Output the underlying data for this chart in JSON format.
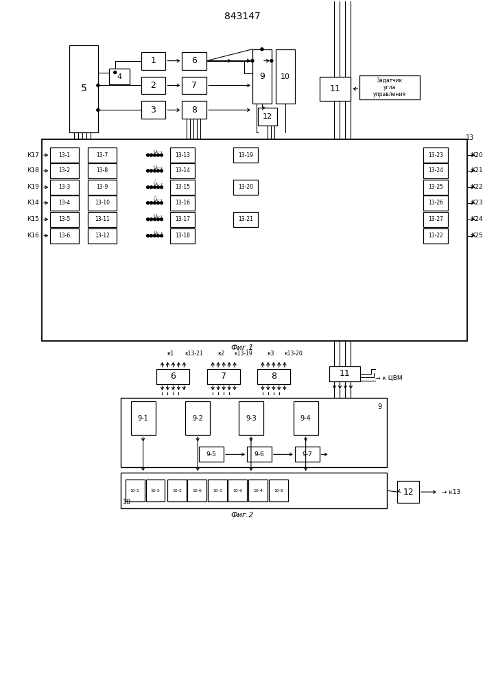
{
  "title": "843147",
  "fig1_label": "Фиг.1",
  "fig2_label": "Фиг.2",
  "zadatchik": "Задатчик\nугла\nуправления",
  "k_tsvm": "к ЦВМ",
  "k13": "к 13"
}
